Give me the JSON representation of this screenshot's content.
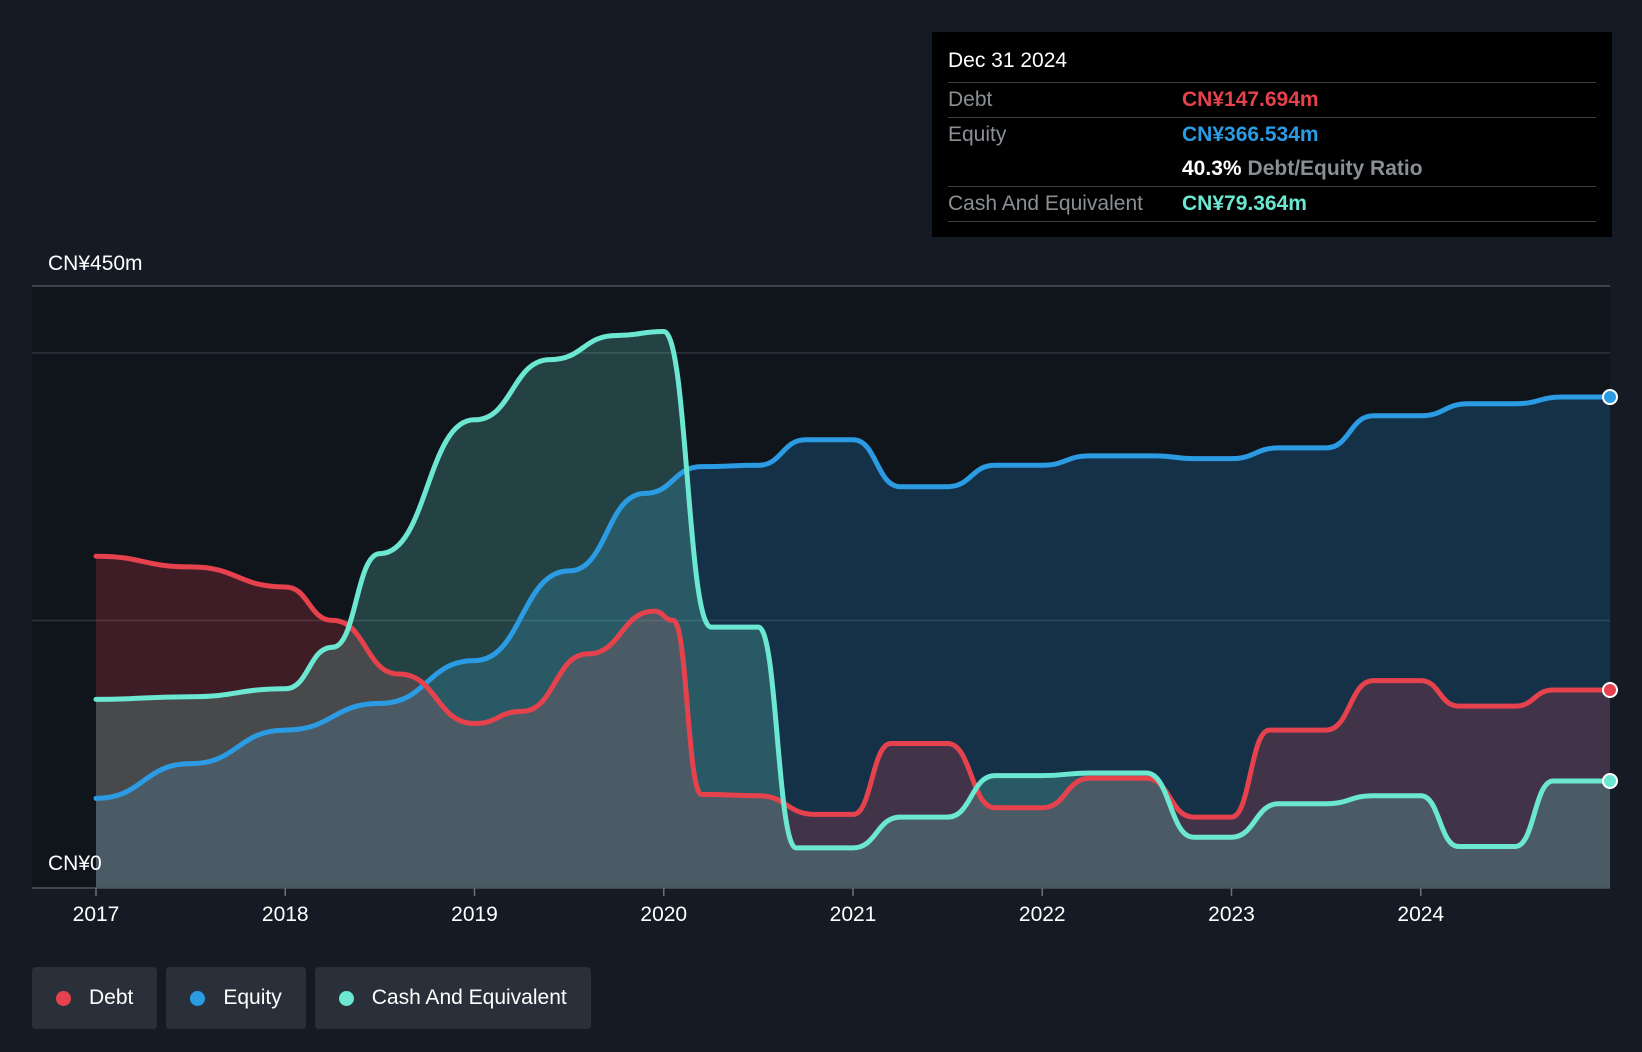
{
  "tooltip": {
    "date": "Dec 31 2024",
    "debt_label": "Debt",
    "debt_value": "CN¥147.694m",
    "equity_label": "Equity",
    "equity_value": "CN¥366.534m",
    "ratio_value": "40.3%",
    "ratio_label": "Debt/Equity Ratio",
    "cash_label": "Cash And Equivalent",
    "cash_value": "CN¥79.364m"
  },
  "legend": {
    "debt": "Debt",
    "equity": "Equity",
    "cash": "Cash And Equivalent"
  },
  "colors": {
    "debt": "#e5424d",
    "equity": "#2b9be4",
    "cash": "#6ce7d1",
    "background": "#151b24",
    "plot_background": "#10141b"
  },
  "chart_data": {
    "type": "area",
    "y_top_label": "CN¥450m",
    "y_bottom_label": "CN¥0",
    "ylim": [
      0,
      450
    ],
    "xlim": [
      2017.0,
      2025.0
    ],
    "x_ticks": [
      2017,
      2018,
      2019,
      2020,
      2021,
      2022,
      2023,
      2024
    ],
    "x_tick_labels": [
      "2017",
      "2018",
      "2019",
      "2020",
      "2021",
      "2022",
      "2023",
      "2024"
    ],
    "gridlines": [
      0,
      200,
      400,
      450
    ],
    "series": [
      {
        "name": "Debt",
        "key": "debt",
        "points": [
          [
            2017.0,
            248
          ],
          [
            2017.5,
            240
          ],
          [
            2018.0,
            225
          ],
          [
            2018.25,
            200
          ],
          [
            2018.6,
            160
          ],
          [
            2019.0,
            123
          ],
          [
            2019.25,
            132
          ],
          [
            2019.6,
            175
          ],
          [
            2019.95,
            207
          ],
          [
            2020.05,
            200
          ],
          [
            2020.2,
            70
          ],
          [
            2020.5,
            69
          ],
          [
            2020.8,
            55
          ],
          [
            2021.0,
            55
          ],
          [
            2021.2,
            108
          ],
          [
            2021.5,
            108
          ],
          [
            2021.75,
            60
          ],
          [
            2022.0,
            60
          ],
          [
            2022.25,
            82
          ],
          [
            2022.55,
            82
          ],
          [
            2022.8,
            53
          ],
          [
            2023.0,
            53
          ],
          [
            2023.2,
            118
          ],
          [
            2023.5,
            118
          ],
          [
            2023.75,
            155
          ],
          [
            2024.0,
            155
          ],
          [
            2024.2,
            136
          ],
          [
            2024.5,
            136
          ],
          [
            2024.7,
            148
          ],
          [
            2025.0,
            148
          ]
        ]
      },
      {
        "name": "Equity",
        "key": "equity",
        "points": [
          [
            2017.0,
            67
          ],
          [
            2017.5,
            93
          ],
          [
            2018.0,
            118
          ],
          [
            2018.5,
            138
          ],
          [
            2019.0,
            170
          ],
          [
            2019.5,
            237
          ],
          [
            2019.9,
            295
          ],
          [
            2020.2,
            315
          ],
          [
            2020.5,
            316
          ],
          [
            2020.75,
            335
          ],
          [
            2021.0,
            335
          ],
          [
            2021.25,
            300
          ],
          [
            2021.5,
            300
          ],
          [
            2021.75,
            316
          ],
          [
            2022.0,
            316
          ],
          [
            2022.25,
            323
          ],
          [
            2022.6,
            323
          ],
          [
            2022.8,
            321
          ],
          [
            2023.0,
            321
          ],
          [
            2023.25,
            329
          ],
          [
            2023.5,
            329
          ],
          [
            2023.75,
            353
          ],
          [
            2024.0,
            353
          ],
          [
            2024.25,
            362
          ],
          [
            2024.5,
            362
          ],
          [
            2024.75,
            367
          ],
          [
            2025.0,
            367
          ]
        ]
      },
      {
        "name": "Cash And Equivalent",
        "key": "cash",
        "points": [
          [
            2017.0,
            141
          ],
          [
            2017.5,
            143
          ],
          [
            2018.0,
            149
          ],
          [
            2018.25,
            180
          ],
          [
            2018.5,
            250
          ],
          [
            2019.0,
            350
          ],
          [
            2019.4,
            395
          ],
          [
            2019.75,
            413
          ],
          [
            2020.0,
            416
          ],
          [
            2020.25,
            195
          ],
          [
            2020.5,
            195
          ],
          [
            2020.7,
            30
          ],
          [
            2021.0,
            30
          ],
          [
            2021.25,
            53
          ],
          [
            2021.5,
            53
          ],
          [
            2021.75,
            84
          ],
          [
            2022.0,
            84
          ],
          [
            2022.25,
            86
          ],
          [
            2022.55,
            86
          ],
          [
            2022.8,
            38
          ],
          [
            2023.0,
            38
          ],
          [
            2023.25,
            63
          ],
          [
            2023.5,
            63
          ],
          [
            2023.75,
            69
          ],
          [
            2024.0,
            69
          ],
          [
            2024.2,
            31
          ],
          [
            2024.5,
            31
          ],
          [
            2024.7,
            80
          ],
          [
            2025.0,
            80
          ]
        ]
      }
    ]
  }
}
